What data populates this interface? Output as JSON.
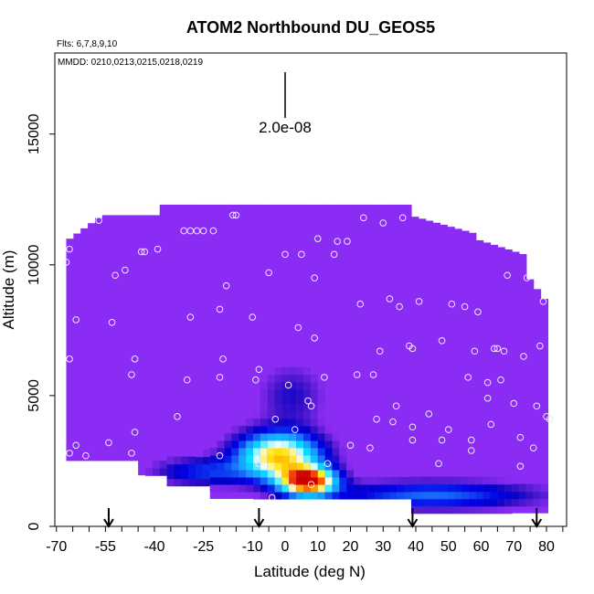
{
  "chart_data": {
    "type": "heatmap",
    "title": "ATOM2 Northbound DU_GEOS5",
    "xlabel": "Latitude (deg N)",
    "ylabel": "Altitude (m)",
    "xlim": [
      -70,
      85
    ],
    "ylim": [
      0,
      18000
    ],
    "xticks": [
      -70,
      -55,
      -40,
      -25,
      -10,
      0,
      10,
      20,
      30,
      40,
      50,
      60,
      70,
      80
    ],
    "yticks": [
      0,
      5000,
      10000,
      15000
    ],
    "annotations": {
      "flights": "Flts: 6,7,8,9,10",
      "dates": "MMDD: 0210,0213,0215,0218,0219",
      "scale_bar": "2.0e-08"
    },
    "background_color": "#8b2cf5",
    "colormap": [
      "#000080",
      "#0000e6",
      "#1e90ff",
      "#00e5ff",
      "#ffffff",
      "#ffe600",
      "#ff5500",
      "#cc0000"
    ],
    "plume_core": {
      "lat": [
        -20,
        33
      ],
      "alt": [
        1500,
        4300
      ],
      "peak_lat": 8,
      "peak_alt": 1700
    },
    "flight_boundary_arrows_lat": [
      -54,
      -8,
      39,
      77
    ],
    "sample_points": [
      {
        "lat": -67,
        "alt": 10100
      },
      {
        "lat": -66,
        "alt": 10600
      },
      {
        "lat": -66,
        "alt": 6400
      },
      {
        "lat": -66,
        "alt": 2800
      },
      {
        "lat": -64,
        "alt": 3100
      },
      {
        "lat": -64,
        "alt": 7900
      },
      {
        "lat": -61,
        "alt": 2700
      },
      {
        "lat": -57,
        "alt": 11700
      },
      {
        "lat": -53,
        "alt": 7800
      },
      {
        "lat": -54,
        "alt": 3200
      },
      {
        "lat": -52,
        "alt": 9600
      },
      {
        "lat": -49,
        "alt": 9800
      },
      {
        "lat": -47,
        "alt": 5800
      },
      {
        "lat": -47,
        "alt": 2800
      },
      {
        "lat": -46,
        "alt": 6400
      },
      {
        "lat": -46,
        "alt": 3600
      },
      {
        "lat": -44,
        "alt": 10500
      },
      {
        "lat": -43,
        "alt": 10500
      },
      {
        "lat": -39,
        "alt": 10600
      },
      {
        "lat": -33,
        "alt": 4200
      },
      {
        "lat": -31,
        "alt": 11300
      },
      {
        "lat": -30,
        "alt": 5600
      },
      {
        "lat": -29,
        "alt": 8000
      },
      {
        "lat": -29,
        "alt": 11300
      },
      {
        "lat": -27,
        "alt": 11300
      },
      {
        "lat": -25,
        "alt": 11300
      },
      {
        "lat": -22,
        "alt": 11300
      },
      {
        "lat": -20,
        "alt": 8300
      },
      {
        "lat": -20,
        "alt": 5700
      },
      {
        "lat": -20,
        "alt": 2700
      },
      {
        "lat": -19,
        "alt": 6400
      },
      {
        "lat": -18,
        "alt": 9200
      },
      {
        "lat": -16,
        "alt": 11900
      },
      {
        "lat": -15,
        "alt": 11900
      },
      {
        "lat": -10,
        "alt": 8000
      },
      {
        "lat": -9,
        "alt": 5600
      },
      {
        "lat": -8,
        "alt": 2400
      },
      {
        "lat": -8,
        "alt": 6000
      },
      {
        "lat": -5,
        "alt": 9700
      },
      {
        "lat": -4,
        "alt": 1100
      },
      {
        "lat": -3,
        "alt": 4100
      },
      {
        "lat": 0,
        "alt": 10400
      },
      {
        "lat": 1,
        "alt": 5400
      },
      {
        "lat": 2,
        "alt": 1500
      },
      {
        "lat": 3,
        "alt": 3700
      },
      {
        "lat": 4,
        "alt": 7600
      },
      {
        "lat": 5,
        "alt": 10400
      },
      {
        "lat": 7,
        "alt": 4800
      },
      {
        "lat": 8,
        "alt": 1600
      },
      {
        "lat": 8,
        "alt": 4600
      },
      {
        "lat": 9,
        "alt": 7200
      },
      {
        "lat": 9,
        "alt": 9500
      },
      {
        "lat": 10,
        "alt": 11000
      },
      {
        "lat": 12,
        "alt": 5700
      },
      {
        "lat": 13,
        "alt": 2400
      },
      {
        "lat": 15,
        "alt": 10400
      },
      {
        "lat": 16,
        "alt": 10900
      },
      {
        "lat": 19,
        "alt": 10900
      },
      {
        "lat": 20,
        "alt": 3100
      },
      {
        "lat": 22,
        "alt": 5800
      },
      {
        "lat": 23,
        "alt": 8500
      },
      {
        "lat": 24,
        "alt": 11800
      },
      {
        "lat": 26,
        "alt": 3000
      },
      {
        "lat": 27,
        "alt": 5800
      },
      {
        "lat": 28,
        "alt": 4100
      },
      {
        "lat": 29,
        "alt": 6700
      },
      {
        "lat": 30,
        "alt": 11600
      },
      {
        "lat": 32,
        "alt": 8700
      },
      {
        "lat": 33,
        "alt": 4000
      },
      {
        "lat": 34,
        "alt": 4600
      },
      {
        "lat": 35,
        "alt": 8400
      },
      {
        "lat": 36,
        "alt": 11800
      },
      {
        "lat": 38,
        "alt": 6900
      },
      {
        "lat": 39,
        "alt": 3800
      },
      {
        "lat": 39,
        "alt": 6800
      },
      {
        "lat": 39,
        "alt": 3300
      },
      {
        "lat": 41,
        "alt": 8600
      },
      {
        "lat": 44,
        "alt": 4300
      },
      {
        "lat": 47,
        "alt": 2400
      },
      {
        "lat": 48,
        "alt": 3300
      },
      {
        "lat": 48,
        "alt": 7100
      },
      {
        "lat": 50,
        "alt": 3700
      },
      {
        "lat": 51,
        "alt": 8500
      },
      {
        "lat": 55,
        "alt": 8400
      },
      {
        "lat": 56,
        "alt": 5700
      },
      {
        "lat": 57,
        "alt": 2900
      },
      {
        "lat": 57,
        "alt": 3300
      },
      {
        "lat": 58,
        "alt": 6700
      },
      {
        "lat": 59,
        "alt": 8200
      },
      {
        "lat": 62,
        "alt": 4900
      },
      {
        "lat": 62,
        "alt": 5500
      },
      {
        "lat": 63,
        "alt": 3900
      },
      {
        "lat": 64,
        "alt": 6800
      },
      {
        "lat": 65,
        "alt": 6800
      },
      {
        "lat": 66,
        "alt": 5600
      },
      {
        "lat": 67,
        "alt": 6700
      },
      {
        "lat": 68,
        "alt": 9600
      },
      {
        "lat": 70,
        "alt": 4700
      },
      {
        "lat": 72,
        "alt": 2300
      },
      {
        "lat": 72,
        "alt": 3400
      },
      {
        "lat": 73,
        "alt": 6500
      },
      {
        "lat": 74,
        "alt": 9500
      },
      {
        "lat": 76,
        "alt": 3000
      },
      {
        "lat": 77,
        "alt": 4600
      },
      {
        "lat": 78,
        "alt": 6900
      },
      {
        "lat": 79,
        "alt": 8600
      },
      {
        "lat": 80,
        "alt": 4200
      },
      {
        "lat": 81,
        "alt": 4100
      }
    ]
  }
}
